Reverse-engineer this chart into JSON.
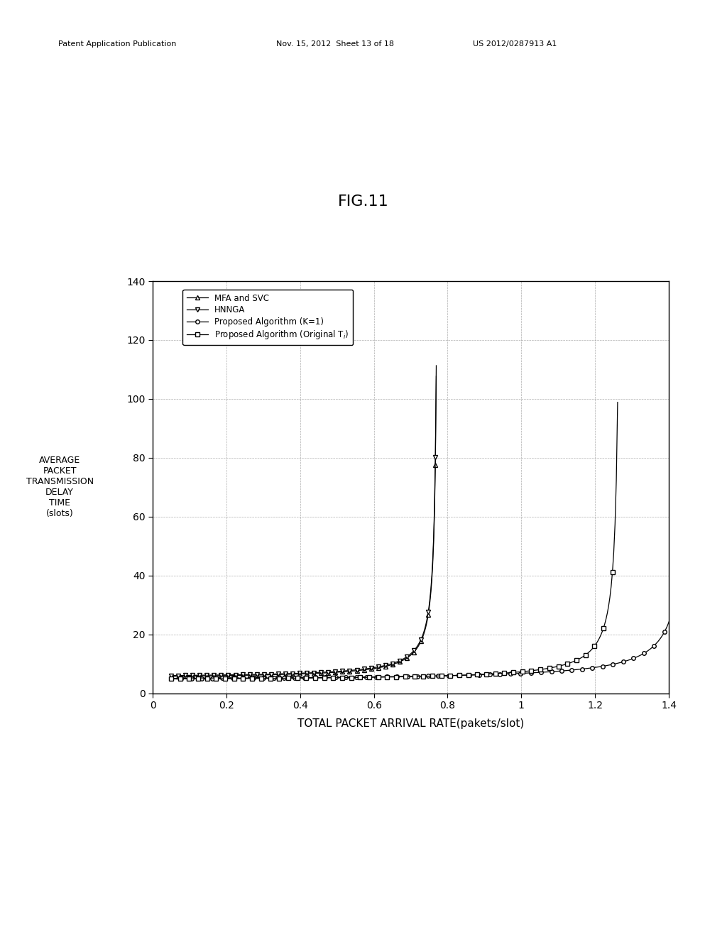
{
  "title": "FIG.11",
  "xlabel": "TOTAL PACKET ARRIVAL RATE(pakets/slot)",
  "xlim": [
    0,
    1.4
  ],
  "ylim": [
    0,
    140
  ],
  "xticks": [
    0,
    0.2,
    0.4,
    0.6,
    0.8,
    1.0,
    1.2,
    1.4
  ],
  "yticks": [
    0,
    20,
    40,
    60,
    80,
    100,
    120,
    140
  ],
  "xticklabels": [
    "0",
    "0.2",
    "0.4",
    "0.6",
    "0.8",
    "1",
    "1.2",
    "1.4"
  ],
  "yticklabels": [
    "0",
    "20",
    "40",
    "60",
    "80",
    "100",
    "120",
    "140"
  ],
  "background_color": "#ffffff",
  "header_left": "Patent Application Publication",
  "header_mid": "Nov. 15, 2012  Sheet 13 of 18",
  "header_right": "US 2012/0287913 A1",
  "ylabel_lines": [
    "AVERAGE",
    "PACKET",
    "TRANSMISSION",
    "DELAY",
    "TIME",
    "(slots)"
  ]
}
